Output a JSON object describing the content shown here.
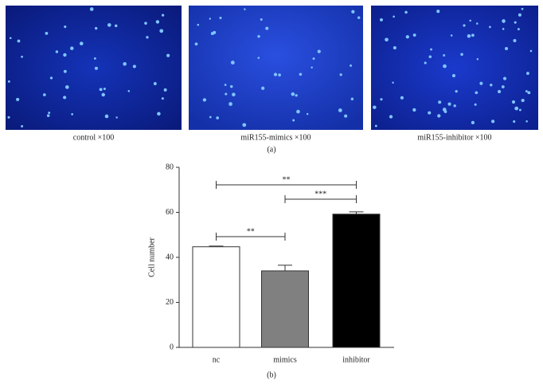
{
  "panel_a": {
    "images": [
      {
        "caption": "control ×100"
      },
      {
        "caption": "miR155-mimics ×100"
      },
      {
        "caption": "miR155-inhibitor ×100"
      }
    ],
    "label": "(a)"
  },
  "chart_data": {
    "type": "bar",
    "y_label": "Cell number",
    "categories": [
      "nc",
      "mimics",
      "inhibitor"
    ],
    "values": [
      44.7,
      34,
      59.2
    ],
    "errors": [
      0.3,
      2.5,
      1
    ],
    "colors": [
      "#ffffff",
      "#808080",
      "#000000"
    ],
    "ylim": [
      0,
      80
    ],
    "yticks": [
      0,
      20,
      40,
      60,
      80
    ],
    "significance": [
      {
        "from": 0,
        "to": 1,
        "text": "**"
      },
      {
        "from": 1,
        "to": 2,
        "text": "***"
      },
      {
        "from": 0,
        "to": 2,
        "text": "**"
      }
    ],
    "label": "(b)"
  }
}
